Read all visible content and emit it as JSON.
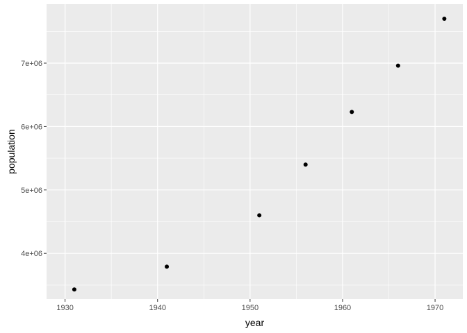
{
  "chart_data": {
    "type": "scatter",
    "title": "",
    "xlabel": "year",
    "ylabel": "population",
    "xlim": [
      1928.0,
      1973.0
    ],
    "ylim": [
      3280000,
      7930000
    ],
    "x_major_ticks": [
      1930,
      1940,
      1950,
      1960,
      1970
    ],
    "x_tick_labels": [
      "1930",
      "1940",
      "1950",
      "1960",
      "1970"
    ],
    "x_minor_ticks": [
      1935,
      1945,
      1955,
      1965
    ],
    "y_major_ticks": [
      4000000,
      5000000,
      6000000,
      7000000
    ],
    "y_tick_labels": [
      "4e+06",
      "5e+06",
      "6e+06",
      "7e+06"
    ],
    "y_minor_ticks": [
      3500000,
      4500000,
      5500000,
      6500000,
      7500000
    ],
    "grid": true,
    "legend": "none",
    "colors": {
      "panel": "#ebebeb",
      "grid": "#ffffff",
      "point": "#000000"
    },
    "points": [
      {
        "x": 1931,
        "y": 3430000
      },
      {
        "x": 1941,
        "y": 3790000
      },
      {
        "x": 1951,
        "y": 4600000
      },
      {
        "x": 1956,
        "y": 5400000
      },
      {
        "x": 1961,
        "y": 6230000
      },
      {
        "x": 1966,
        "y": 6960000
      },
      {
        "x": 1971,
        "y": 7700000
      }
    ]
  }
}
